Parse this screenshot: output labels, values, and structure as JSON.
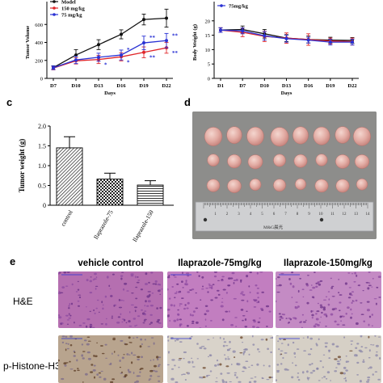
{
  "panel_labels": {
    "c": "c",
    "d": "d",
    "e": "e"
  },
  "chart_data": [
    {
      "id": "tumor-volume",
      "type": "line",
      "ylabel": "Tumor Volume",
      "xlabel": "Days",
      "categories": [
        "D7",
        "D10",
        "D13",
        "D16",
        "D19",
        "D22"
      ],
      "ylim": [
        0,
        800
      ],
      "yticks": [
        0,
        200,
        400,
        600
      ],
      "legend": [
        "Model",
        "150 mg/kg",
        "75 mg/kg"
      ],
      "legend_placement": "top-left",
      "series": [
        {
          "name": "Model",
          "color": "#111111",
          "values": [
            120,
            260,
            375,
            490,
            655,
            670
          ],
          "err": [
            20,
            60,
            55,
            50,
            60,
            100
          ]
        },
        {
          "name": "150 mg/kg",
          "color": "#e0262a",
          "values": [
            115,
            195,
            210,
            240,
            290,
            340
          ],
          "err": [
            20,
            35,
            45,
            45,
            60,
            60
          ]
        },
        {
          "name": "75 mg/kg",
          "color": "#2a32d4",
          "values": [
            118,
            205,
            235,
            260,
            395,
            420
          ],
          "err": [
            20,
            40,
            45,
            55,
            75,
            80
          ]
        }
      ],
      "annotations": [
        {
          "x": "D13",
          "text": "*",
          "series": "150 mg/kg"
        },
        {
          "x": "D16",
          "text": "*",
          "series": "150 mg/kg"
        },
        {
          "x": "D16",
          "text": "*",
          "series": "75 mg/kg"
        },
        {
          "x": "D19",
          "text": "**",
          "series": "75 mg/kg"
        },
        {
          "x": "D19",
          "text": "**",
          "series": "150 mg/kg"
        },
        {
          "x": "D22",
          "text": "**",
          "series": "75 mg/kg"
        },
        {
          "x": "D22",
          "text": "**",
          "series": "150 mg/kg"
        }
      ]
    },
    {
      "id": "body-weight",
      "type": "line",
      "ylabel": "Body Weight (g)",
      "xlabel": "Days",
      "categories": [
        "D1",
        "D7",
        "D10",
        "D13",
        "D16",
        "D19",
        "D22"
      ],
      "ylim": [
        0,
        25
      ],
      "yticks": [
        0,
        5,
        10,
        15,
        20
      ],
      "legend": [
        "75mg/kg"
      ],
      "legend_placement": "top-left",
      "series": [
        {
          "name": "Model",
          "color": "#111111",
          "values": [
            16.8,
            17.0,
            15.5,
            14.0,
            13.5,
            13.3,
            13.2
          ],
          "err": [
            0.8,
            1.2,
            1.5,
            1.2,
            1.2,
            1.0,
            1.0
          ]
        },
        {
          "name": "150 mg/kg",
          "color": "#e0262a",
          "values": [
            16.8,
            16.0,
            14.6,
            14.0,
            13.5,
            13.0,
            12.8
          ],
          "err": [
            0.8,
            1.5,
            1.8,
            1.8,
            2.0,
            1.0,
            1.2
          ]
        },
        {
          "name": "75mg/kg",
          "color": "#2a32d4",
          "values": [
            16.8,
            16.5,
            14.8,
            13.8,
            13.3,
            12.6,
            12.6
          ],
          "err": [
            0.8,
            1.0,
            1.5,
            1.2,
            1.0,
            1.0,
            1.0
          ]
        }
      ]
    },
    {
      "id": "tumor-weight",
      "type": "bar",
      "ylabel": "Tumor weight (g)",
      "categories": [
        "control",
        "Ilaprazole-75",
        "Ilaprazole-150"
      ],
      "values": [
        1.45,
        0.66,
        0.51
      ],
      "err": [
        0.28,
        0.15,
        0.11
      ],
      "ylim": [
        0,
        2
      ],
      "yticks": [
        "0",
        "0.5",
        "1.0",
        "1.5",
        "2.0"
      ],
      "patterns": [
        "diagonal",
        "checker",
        "horizontal"
      ]
    }
  ],
  "photo_d": {
    "ruler_ticks": [
      "1",
      "2",
      "3",
      "4",
      "5",
      "6",
      "7",
      "8",
      "9",
      "10",
      "11",
      "12",
      "13",
      "14"
    ],
    "ruler_brand": "M&G晨光"
  },
  "histology": {
    "columns": [
      "vehicle control",
      "Ilaprazole-75mg/kg",
      "Ilaprazole-150mg/kg"
    ],
    "rows": [
      "H&E",
      "p-Histone-H3"
    ]
  }
}
